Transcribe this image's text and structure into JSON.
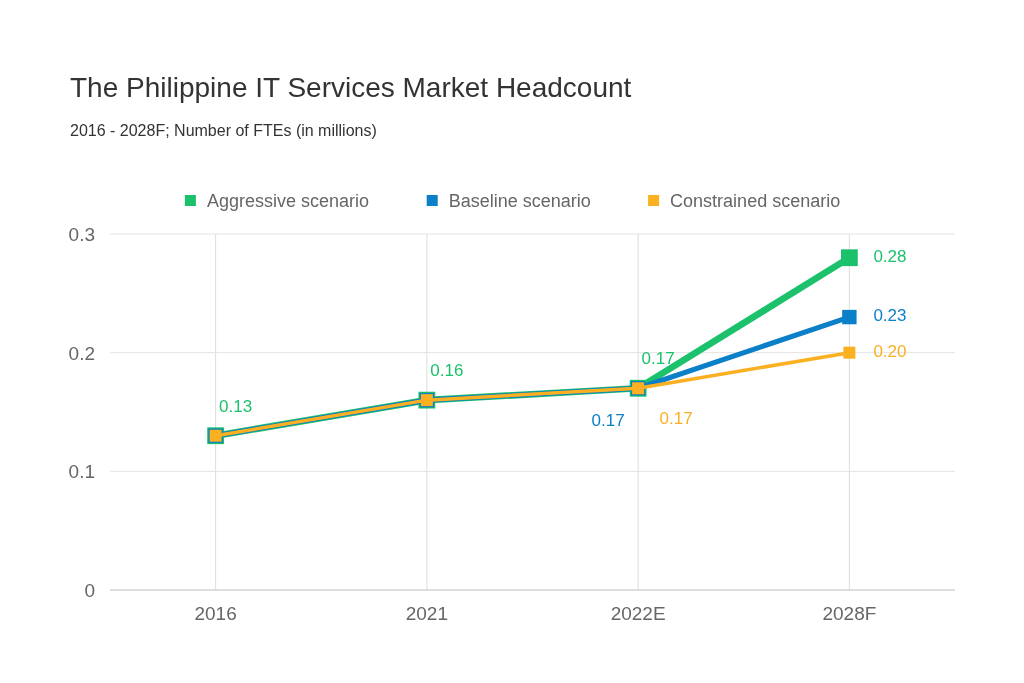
{
  "chart_data": {
    "type": "line",
    "title": "The Philippine IT Services Market Headcount",
    "subtitle": "2016 - 2028F; Number of FTEs (in millions)",
    "categories": [
      "2016",
      "2021",
      "2022E",
      "2028F"
    ],
    "series": [
      {
        "name": "Aggressive scenario",
        "color": "#1cc16b",
        "values": [
          0.13,
          0.16,
          0.17,
          0.28
        ],
        "value_labels": [
          "0.13",
          "0.16",
          "0.17",
          "0.28"
        ]
      },
      {
        "name": "Baseline scenario",
        "color": "#0b7fc7",
        "values": [
          0.13,
          0.16,
          0.17,
          0.23
        ],
        "value_labels": [
          null,
          null,
          "0.17",
          "0.23"
        ]
      },
      {
        "name": "Constrained scenario",
        "color": "#fbb022",
        "values": [
          0.13,
          0.16,
          0.17,
          0.2
        ],
        "value_labels": [
          null,
          null,
          "0.17",
          "0.20"
        ]
      }
    ],
    "ylim": [
      0,
      0.3
    ],
    "yticks": [
      0,
      0.1,
      0.2,
      0.3
    ],
    "grid": true,
    "legend": "top",
    "marker": "square",
    "line_style": "solid"
  }
}
